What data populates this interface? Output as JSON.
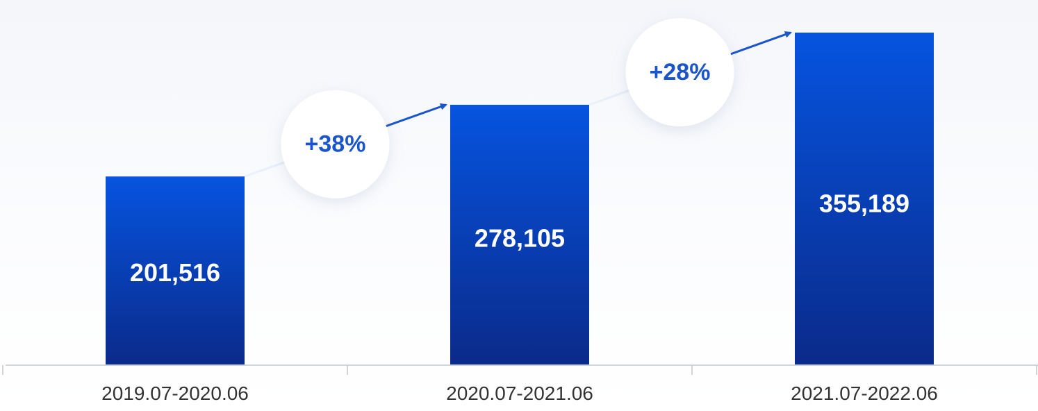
{
  "colors": {
    "bar_top": "#0654e0",
    "bar_bottom": "#0a2a8a",
    "accent": "#1a55cc",
    "axis": "#d0d3d8",
    "category_text": "#333333",
    "bubble": "#ffffff"
  },
  "chart_data": {
    "type": "bar",
    "categories": [
      "2019.07-2020.06",
      "2020.07-2021.06",
      "2021.07-2022.06"
    ],
    "values": [
      201516,
      278105,
      355189
    ],
    "value_labels": [
      "201,516",
      "278,105",
      "355,189"
    ],
    "growth_labels": [
      "+38%",
      "+28%"
    ],
    "ylim": [
      0,
      390000
    ],
    "grid": false,
    "legend": "none",
    "title": "",
    "xlabel": "",
    "ylabel": ""
  }
}
